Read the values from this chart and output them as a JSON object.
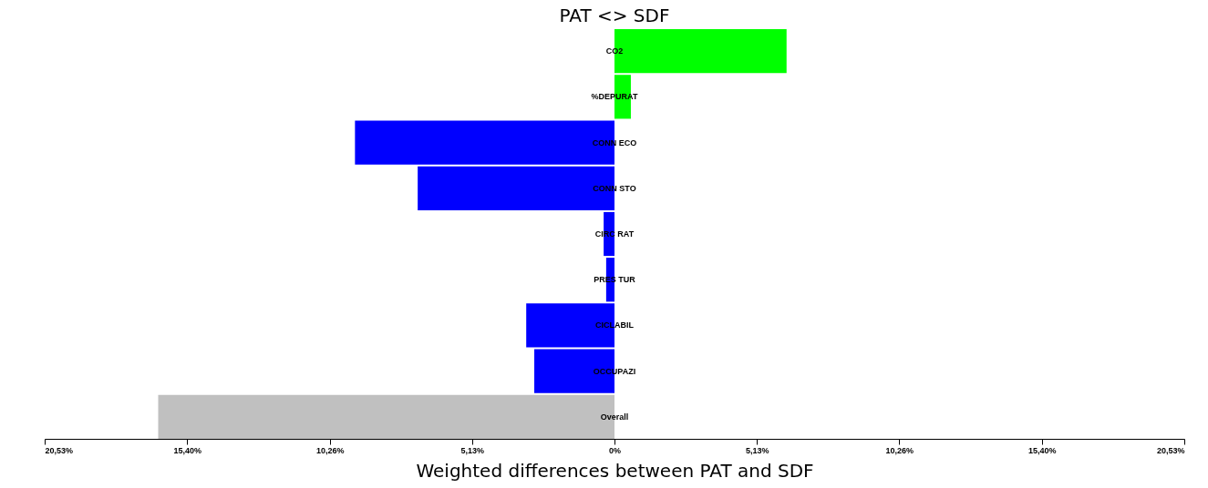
{
  "chart_data": {
    "type": "bar",
    "orientation": "horizontal",
    "title": "PAT <> SDF",
    "xlabel": "Weighted differences between PAT and SDF",
    "categories": [
      "CO2",
      "%DEPURAT",
      "CONN ECO",
      "CONN STO",
      "CIRC RAT",
      "PRES TUR",
      "CICLABIL",
      "OCCUPAZI",
      "Overall"
    ],
    "values": [
      6.2,
      0.59,
      -9.35,
      -7.09,
      -0.39,
      -0.3,
      -3.18,
      -2.89,
      -16.44
    ],
    "colors": [
      "#00ff00",
      "#00ff00",
      "#0000ff",
      "#0000ff",
      "#0000ff",
      "#0000ff",
      "#0000ff",
      "#0000ff",
      "#c0c0c0"
    ],
    "xlim": [
      -20.53,
      20.53
    ],
    "xticks": [
      {
        "value": -20.53,
        "label": "20,53%"
      },
      {
        "value": -15.4,
        "label": "15,40%"
      },
      {
        "value": -10.26,
        "label": "10,26%"
      },
      {
        "value": -5.13,
        "label": "5,13%"
      },
      {
        "value": 0,
        "label": "0%"
      },
      {
        "value": 5.13,
        "label": "5,13%"
      },
      {
        "value": 10.26,
        "label": "10,26%"
      },
      {
        "value": 15.4,
        "label": "15,40%"
      },
      {
        "value": 20.53,
        "label": "20,53%"
      }
    ],
    "grid": false,
    "legend": false
  }
}
